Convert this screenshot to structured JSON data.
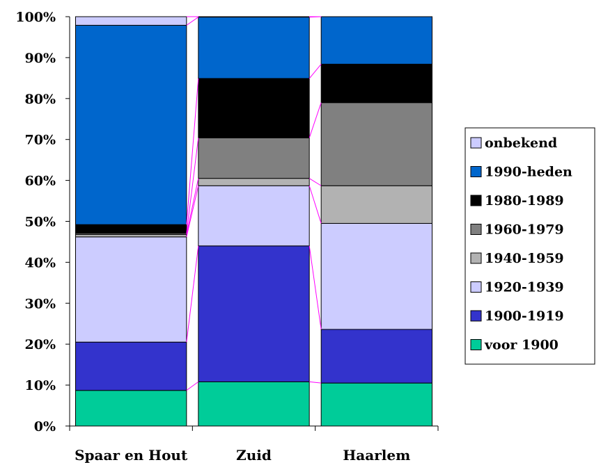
{
  "chart_data": {
    "type": "stacked-bar-100",
    "categories": [
      "Spaar en Hout",
      "Zuid",
      "Haarlem"
    ],
    "series": [
      {
        "name": "voor 1900",
        "color": "#00CC99",
        "values": [
          8.7,
          10.8,
          10.5
        ]
      },
      {
        "name": "1900-1919",
        "color": "#3333CC",
        "values": [
          11.8,
          33.2,
          13.1
        ]
      },
      {
        "name": "1920-1939",
        "color": "#CCCCFF",
        "values": [
          25.7,
          14.7,
          25.9
        ]
      },
      {
        "name": "1940-1959",
        "color": "#B2B2B2",
        "values": [
          0.6,
          1.8,
          9.2
        ]
      },
      {
        "name": "1960-1979",
        "color": "#808080",
        "values": [
          0.3,
          9.9,
          20.3
        ]
      },
      {
        "name": "1980-1989",
        "color": "#000000",
        "values": [
          2.1,
          14.5,
          9.4
        ]
      },
      {
        "name": "1990-heden",
        "color": "#0066CC",
        "values": [
          48.7,
          15.0,
          11.6
        ]
      },
      {
        "name": "onbekend",
        "color": "#CCCCFF",
        "values": [
          2.1,
          0.1,
          0.0
        ]
      }
    ],
    "yticks": [
      "0%",
      "10%",
      "20%",
      "30%",
      "40%",
      "50%",
      "60%",
      "70%",
      "80%",
      "90%",
      "100%"
    ],
    "ylim": [
      0,
      100
    ],
    "series_lines_color": "#FF00FF",
    "legend_position": "right",
    "legend_order": [
      "onbekend",
      "1990-heden",
      "1980-1989",
      "1960-1979",
      "1940-1959",
      "1920-1939",
      "1900-1919",
      "voor 1900"
    ]
  }
}
